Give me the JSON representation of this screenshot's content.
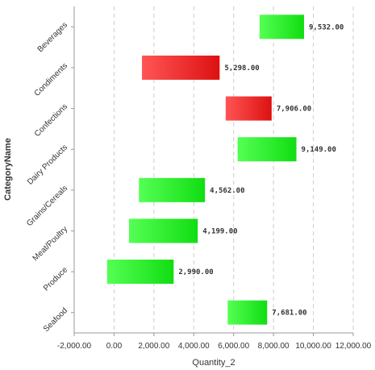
{
  "chart_data": {
    "type": "bar",
    "orientation": "horizontal",
    "bar_style": "floating-waterfall",
    "xlabel": "Quantity_2",
    "ylabel": "CategoryName",
    "xlim": [
      -2000,
      12000
    ],
    "x_ticks": [
      -2000,
      0,
      2000,
      4000,
      6000,
      8000,
      10000,
      12000
    ],
    "x_tick_labels": [
      "-2,000.00",
      "0.00",
      "2,000.00",
      "4,000.00",
      "6,000.00",
      "8,000.00",
      "10,000.00",
      "12,000.00"
    ],
    "grid": "vertical-dashed",
    "categories": [
      "Beverages",
      "Condiments",
      "Confections",
      "Dairy Products",
      "Grains/Cereals",
      "Meat/Poultry",
      "Produce",
      "Seafood"
    ],
    "start": [
      7300,
      1400,
      5600,
      6200,
      1250,
      750,
      -350,
      5700
    ],
    "end": [
      9532,
      5298,
      7906,
      9149,
      4562,
      4199,
      2990,
      7681
    ],
    "values": [
      9532,
      5298,
      7906,
      9149,
      4562,
      4199,
      2990,
      7681
    ],
    "value_labels": [
      "9,532.00",
      "5,298.00",
      "7,906.00",
      "9,149.00",
      "4,562.00",
      "4,199.00",
      "2,990.00",
      "7,681.00"
    ],
    "bar_colors": [
      "green",
      "red",
      "red",
      "green",
      "green",
      "green",
      "green",
      "green"
    ],
    "colors": {
      "green": [
        "#55ff55",
        "#11dd11"
      ],
      "red": [
        "#ff5555",
        "#dd1111"
      ],
      "grid": "#cccccc",
      "axis": "#999999"
    }
  }
}
